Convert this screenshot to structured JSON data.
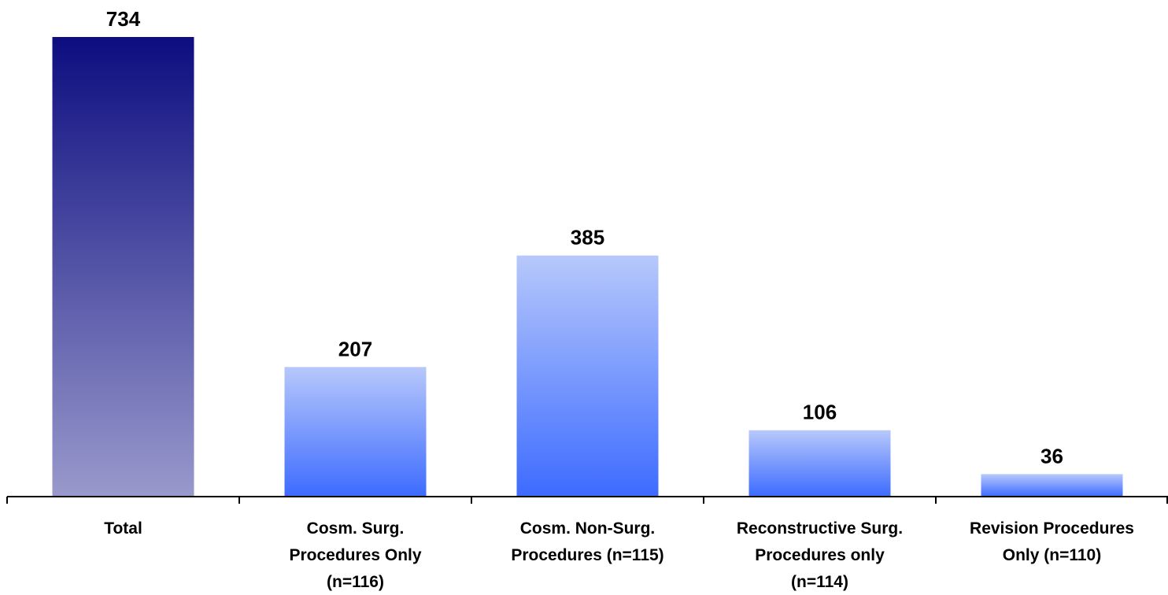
{
  "chart_data": {
    "type": "bar",
    "categories": [
      [
        "Total"
      ],
      [
        "Cosm. Surg.",
        "Procedures Only",
        "(n=116)"
      ],
      [
        "Cosm. Non-Surg.",
        "Procedures (n=115)"
      ],
      [
        "Reconstructive Surg.",
        "Procedures only",
        "(n=114)"
      ],
      [
        "Revision Procedures",
        "Only (n=110)"
      ]
    ],
    "values": [
      734,
      207,
      385,
      106,
      36
    ],
    "data_labels": [
      "734",
      "207",
      "385",
      "106",
      "36"
    ],
    "title": "",
    "xlabel": "",
    "ylabel": "",
    "ylim": [
      0,
      734
    ],
    "grid": false,
    "legend": "none",
    "colors": {
      "total_top": "#0d0d80",
      "total_bottom": "#9999cc",
      "sub_top": "#b7c8fb",
      "sub_bottom": "#3d6bff",
      "axis": "#000000"
    }
  }
}
